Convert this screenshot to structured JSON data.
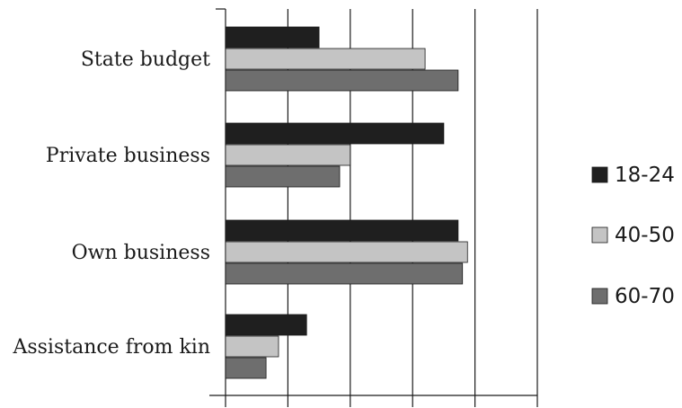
{
  "chart_data": {
    "type": "bar",
    "orientation": "horizontal",
    "title": "",
    "xlabel": "",
    "ylabel": "",
    "categories": [
      "State budget",
      "Private business",
      "Own business",
      "Assistance from kin"
    ],
    "series": [
      {
        "name": "18-24",
        "color": "#1f1f1f",
        "values": [
          15,
          35,
          37.3,
          13
        ]
      },
      {
        "name": "40-50",
        "color": "#c4c4c4",
        "values": [
          32,
          20,
          38.8,
          8.5
        ]
      },
      {
        "name": "60-70",
        "color": "#6e6e6e",
        "values": [
          37.3,
          18.3,
          38,
          6.5
        ]
      }
    ],
    "xlim": [
      0,
      50
    ],
    "x_gridlines": [
      0,
      10,
      20,
      30,
      40,
      50
    ],
    "tick_labels_shown": false,
    "grid": "vertical",
    "legend_position": "right"
  }
}
